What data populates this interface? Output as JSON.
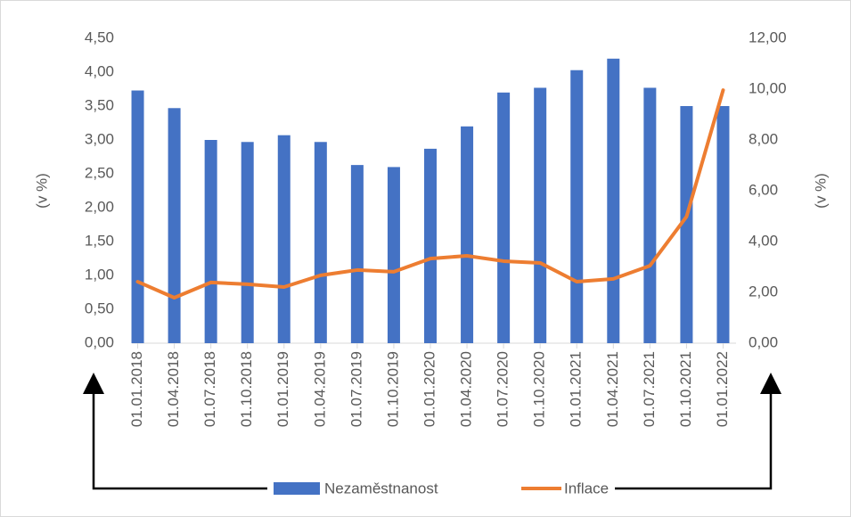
{
  "chart_data": {
    "type": "bar_line",
    "categories": [
      "01.01.2018",
      "01.04.2018",
      "01.07.2018",
      "01.10.2018",
      "01.01.2019",
      "01.04.2019",
      "01.07.2019",
      "01.10.2019",
      "01.01.2020",
      "01.04.2020",
      "01.07.2020",
      "01.10.2020",
      "01.01.2021",
      "01.04.2021",
      "01.07.2021",
      "01.10.2021",
      "01.01.2022"
    ],
    "series": [
      {
        "name": "Nezaměstnanost",
        "color": "#4472c4",
        "type": "bar",
        "axis": "y",
        "values": [
          3.73,
          3.47,
          3.0,
          2.97,
          3.07,
          2.97,
          2.63,
          2.6,
          2.87,
          3.2,
          3.7,
          3.77,
          4.03,
          4.2,
          3.77,
          3.5,
          3.5
        ]
      },
      {
        "name": "Inflace",
        "color": "#ed7d31",
        "type": "line",
        "axis": "y2",
        "values": [
          2.42,
          1.79,
          2.39,
          2.32,
          2.21,
          2.67,
          2.88,
          2.81,
          3.33,
          3.44,
          3.23,
          3.16,
          2.42,
          2.53,
          3.05,
          4.98,
          9.96
        ]
      }
    ],
    "ylabel": "(v %)",
    "y2label": "(v %)",
    "ylim": [
      0,
      4.5
    ],
    "yticks": [
      {
        "value": 0,
        "label": "0,00"
      },
      {
        "value": 0.5,
        "label": "0,50"
      },
      {
        "value": 1,
        "label": "1,00"
      },
      {
        "value": 1.5,
        "label": "1,50"
      },
      {
        "value": 2,
        "label": "2,00"
      },
      {
        "value": 2.5,
        "label": "2,50"
      },
      {
        "value": 3,
        "label": "3,00"
      },
      {
        "value": 3.5,
        "label": "3,50"
      },
      {
        "value": 4,
        "label": "4,00"
      },
      {
        "value": 4.5,
        "label": "4,50"
      }
    ],
    "y2lim": [
      0,
      12
    ],
    "y2ticks": [
      {
        "value": 0,
        "label": "0,00"
      },
      {
        "value": 2,
        "label": "2,00"
      },
      {
        "value": 4,
        "label": "4,00"
      },
      {
        "value": 6,
        "label": "6,00"
      },
      {
        "value": 8,
        "label": "8,00"
      },
      {
        "value": 10,
        "label": "10,00"
      },
      {
        "value": 12,
        "label": "12,00"
      }
    ],
    "legend": "bottom",
    "grid": false
  }
}
